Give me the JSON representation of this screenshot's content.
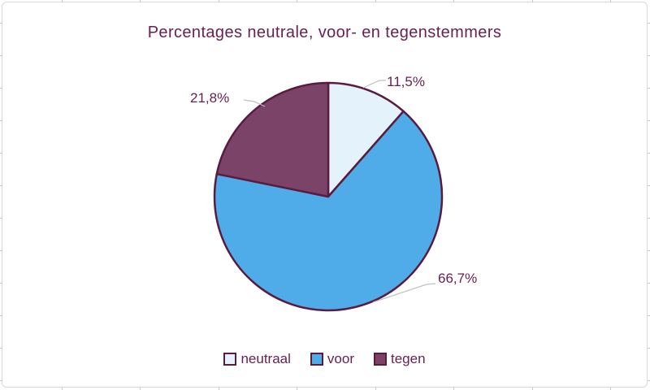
{
  "chart_data": {
    "type": "pie",
    "title": "Percentages neutrale, voor- en tegenstemmers",
    "series": [
      {
        "name": "neutraal",
        "value": 11.5,
        "label": "11,5%",
        "color": "#E4F2FB"
      },
      {
        "name": "voor",
        "value": 66.7,
        "label": "66,7%",
        "color": "#4FACE8"
      },
      {
        "name": "tegen",
        "value": 21.8,
        "label": "21,8%",
        "color": "#7B4368"
      }
    ],
    "start_angle_deg": -90,
    "direction": "clockwise",
    "slice_border_color": "#5A1B3E",
    "leader_line_color": "#BFBFBF",
    "text_color": "#692053",
    "legend_position": "bottom",
    "legend_order": [
      "neutraal",
      "voor",
      "tegen"
    ]
  },
  "frame": {
    "background": "#FFFFFF",
    "border_color": "#D9D9D9"
  }
}
